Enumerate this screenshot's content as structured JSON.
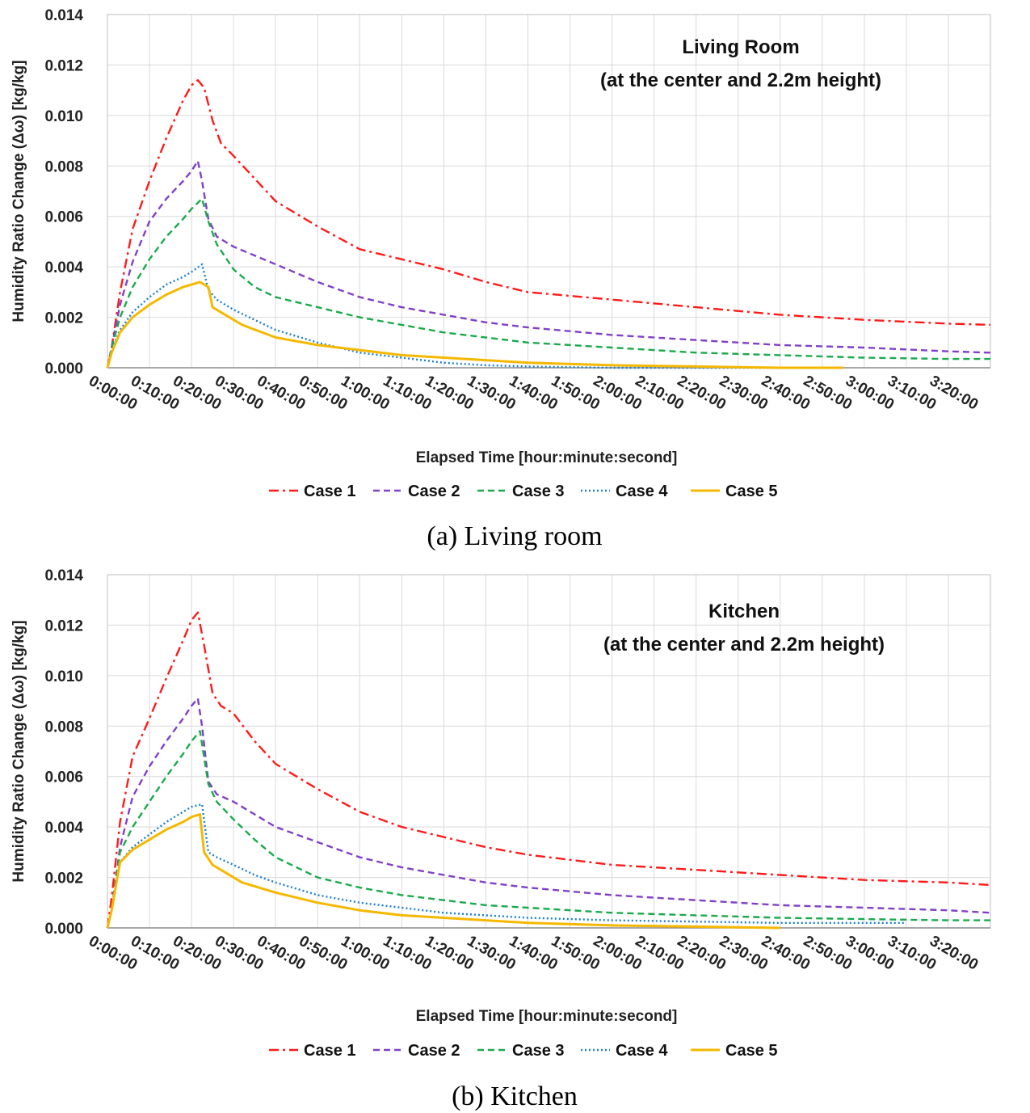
{
  "chart_data": [
    {
      "type": "line",
      "annotation": [
        "Living Room",
        "(at the center and 2.2m height)"
      ],
      "caption": "(a) Living room",
      "xlabel": "Elapsed Time [hour:minute:second]",
      "ylabel": "Humidity Ratio Change (Δω) [kg/kg]",
      "ylim": [
        0,
        0.014
      ],
      "xlim_minutes": [
        0,
        210
      ],
      "yticks": [
        "0.000",
        "0.002",
        "0.004",
        "0.006",
        "0.008",
        "0.010",
        "0.012",
        "0.014"
      ],
      "xticks": [
        "0:00:00",
        "0:10:00",
        "0:20:00",
        "0:30:00",
        "0:40:00",
        "0:50:00",
        "1:00:00",
        "1:10:00",
        "1:20:00",
        "1:30:00",
        "1:40:00",
        "1:50:00",
        "2:00:00",
        "2:10:00",
        "2:20:00",
        "2:30:00",
        "2:40:00",
        "2:50:00",
        "3:00:00",
        "3:10:00",
        "3:20:00"
      ],
      "grid": true,
      "legend_position": "bottom",
      "series": [
        {
          "name": "Case 1",
          "color": "#ff1a1a",
          "dash": "dashdot",
          "x": [
            0,
            1,
            3,
            6,
            10,
            14,
            18,
            20,
            21.5,
            23,
            25,
            27,
            30,
            35,
            40,
            50,
            60,
            70,
            80,
            90,
            100,
            120,
            140,
            160,
            180,
            200,
            210
          ],
          "y": [
            0,
            0.0008,
            0.003,
            0.0055,
            0.0074,
            0.0091,
            0.0106,
            0.0112,
            0.0114,
            0.0111,
            0.0098,
            0.0089,
            0.0084,
            0.0075,
            0.0066,
            0.0056,
            0.0047,
            0.0043,
            0.0039,
            0.0034,
            0.003,
            0.0027,
            0.0024,
            0.0021,
            0.0019,
            0.00175,
            0.0017
          ]
        },
        {
          "name": "Case 2",
          "color": "#8040c8",
          "dash": "dash",
          "x": [
            0,
            1,
            3,
            6,
            10,
            14,
            18,
            20,
            21.5,
            22.5,
            24,
            26,
            30,
            40,
            50,
            60,
            70,
            80,
            90,
            100,
            120,
            140,
            160,
            180,
            200,
            210
          ],
          "y": [
            0,
            0.0008,
            0.0025,
            0.0042,
            0.0058,
            0.0067,
            0.0074,
            0.0078,
            0.0082,
            0.0074,
            0.0059,
            0.0052,
            0.0048,
            0.0041,
            0.0034,
            0.0028,
            0.0024,
            0.0021,
            0.0018,
            0.0016,
            0.0013,
            0.0011,
            0.0009,
            0.0008,
            0.00065,
            0.0006
          ]
        },
        {
          "name": "Case 3",
          "color": "#1aaa4c",
          "dash": "dash",
          "x": [
            0,
            1,
            3,
            6,
            10,
            14,
            18,
            20,
            22.5,
            24,
            26,
            30,
            35,
            40,
            50,
            60,
            70,
            80,
            90,
            100,
            120,
            140,
            160,
            180,
            200,
            210
          ],
          "y": [
            0,
            0.0008,
            0.002,
            0.0032,
            0.0043,
            0.0052,
            0.0059,
            0.0063,
            0.0067,
            0.0058,
            0.0049,
            0.0039,
            0.0032,
            0.0028,
            0.0024,
            0.002,
            0.0017,
            0.0014,
            0.0012,
            0.001,
            0.0008,
            0.0006,
            0.0005,
            0.0004,
            0.00035,
            0.00035
          ]
        },
        {
          "name": "Case 4",
          "color": "#1a7fd4",
          "dash": "dot",
          "x": [
            0,
            1,
            3,
            6,
            10,
            14,
            18,
            20,
            22.5,
            24,
            26,
            30,
            35,
            40,
            50,
            60,
            70,
            80,
            90,
            100,
            120,
            140,
            160
          ],
          "y": [
            0,
            0.0007,
            0.0015,
            0.0022,
            0.0028,
            0.0033,
            0.0036,
            0.0038,
            0.0041,
            0.0031,
            0.0027,
            0.0023,
            0.0019,
            0.0015,
            0.001,
            0.0006,
            0.0004,
            0.0002,
            0.0001,
            5e-05,
            0.0,
            0.0,
            0.0
          ]
        },
        {
          "name": "Case 5",
          "color": "#f5b800",
          "dash": "solid",
          "x": [
            0,
            1,
            3,
            6,
            10,
            14,
            18,
            20,
            22,
            24,
            25,
            28,
            32,
            40,
            50,
            60,
            70,
            80,
            90,
            100,
            120,
            140,
            160,
            175
          ],
          "y": [
            0,
            0.0006,
            0.0014,
            0.002,
            0.0025,
            0.0029,
            0.0032,
            0.0033,
            0.0034,
            0.0032,
            0.0024,
            0.0021,
            0.0017,
            0.0012,
            0.0009,
            0.0007,
            0.0005,
            0.0004,
            0.0003,
            0.0002,
            0.0001,
            5e-05,
            0.0,
            0.0
          ]
        }
      ]
    },
    {
      "type": "line",
      "annotation": [
        "Kitchen",
        "(at the center and 2.2m height)"
      ],
      "caption": "(b) Kitchen",
      "xlabel": "Elapsed Time [hour:minute:second]",
      "ylabel": "Humidity Ratio Change (Δω) [kg/kg]",
      "ylim": [
        0,
        0.014
      ],
      "xlim_minutes": [
        0,
        210
      ],
      "yticks": [
        "0.000",
        "0.002",
        "0.004",
        "0.006",
        "0.008",
        "0.010",
        "0.012",
        "0.014"
      ],
      "xticks": [
        "0:00:00",
        "0:10:00",
        "0:20:00",
        "0:30:00",
        "0:40:00",
        "0:50:00",
        "1:00:00",
        "1:10:00",
        "1:20:00",
        "1:30:00",
        "1:40:00",
        "1:50:00",
        "2:00:00",
        "2:10:00",
        "2:20:00",
        "2:30:00",
        "2:40:00",
        "2:50:00",
        "3:00:00",
        "3:10:00",
        "3:20:00"
      ],
      "grid": true,
      "legend_position": "bottom",
      "series": [
        {
          "name": "Case 1",
          "color": "#ff1a1a",
          "dash": "dashdot",
          "x": [
            0,
            1,
            3,
            6,
            10,
            14,
            18,
            20,
            21.5,
            23,
            25,
            27,
            30,
            35,
            40,
            50,
            60,
            70,
            80,
            90,
            100,
            120,
            140,
            160,
            180,
            200,
            210
          ],
          "y": [
            0,
            0.0012,
            0.0042,
            0.0068,
            0.0083,
            0.0099,
            0.0114,
            0.0122,
            0.0125,
            0.0112,
            0.0093,
            0.0088,
            0.0085,
            0.0074,
            0.0065,
            0.0055,
            0.0046,
            0.004,
            0.0036,
            0.0032,
            0.0029,
            0.0025,
            0.0023,
            0.0021,
            0.0019,
            0.0018,
            0.0017
          ]
        },
        {
          "name": "Case 2",
          "color": "#8040c8",
          "dash": "dash",
          "x": [
            0,
            1,
            3,
            6,
            10,
            14,
            18,
            20,
            21.5,
            22.5,
            24,
            26,
            30,
            40,
            50,
            60,
            70,
            80,
            90,
            100,
            120,
            140,
            160,
            180,
            200,
            210
          ],
          "y": [
            0,
            0.0007,
            0.0032,
            0.0052,
            0.0064,
            0.0074,
            0.0083,
            0.0088,
            0.0091,
            0.008,
            0.0058,
            0.0053,
            0.005,
            0.004,
            0.0034,
            0.0028,
            0.0024,
            0.0021,
            0.0018,
            0.0016,
            0.0013,
            0.0011,
            0.0009,
            0.0008,
            0.0007,
            0.0006
          ]
        },
        {
          "name": "Case 3",
          "color": "#1aaa4c",
          "dash": "dash",
          "x": [
            0,
            1,
            3,
            6,
            10,
            14,
            18,
            20,
            22,
            24,
            26,
            30,
            35,
            40,
            50,
            60,
            70,
            80,
            90,
            100,
            120,
            140,
            160,
            180,
            200,
            210
          ],
          "y": [
            0,
            0.0007,
            0.003,
            0.004,
            0.005,
            0.006,
            0.0069,
            0.0074,
            0.0078,
            0.0057,
            0.005,
            0.0043,
            0.0035,
            0.0028,
            0.002,
            0.0016,
            0.0013,
            0.0011,
            0.0009,
            0.0008,
            0.0006,
            0.0005,
            0.0004,
            0.00035,
            0.0003,
            0.0003
          ]
        },
        {
          "name": "Case 4",
          "color": "#1a7fd4",
          "dash": "dot",
          "x": [
            0,
            1,
            3,
            6,
            10,
            14,
            18,
            20,
            22.5,
            24,
            26,
            30,
            35,
            40,
            50,
            60,
            70,
            80,
            90,
            100,
            120,
            140,
            160,
            180,
            190
          ],
          "y": [
            0,
            0.0007,
            0.0026,
            0.0032,
            0.0037,
            0.0042,
            0.0046,
            0.0048,
            0.0049,
            0.003,
            0.0028,
            0.0025,
            0.0021,
            0.0018,
            0.0013,
            0.001,
            0.0008,
            0.0006,
            0.0005,
            0.0004,
            0.0003,
            0.00025,
            0.0002,
            0.0002,
            0.0002
          ]
        },
        {
          "name": "Case 5",
          "color": "#f5b800",
          "dash": "solid",
          "x": [
            0,
            1,
            3,
            6,
            10,
            14,
            18,
            20,
            22,
            23,
            25,
            28,
            32,
            40,
            50,
            60,
            70,
            80,
            90,
            100,
            120,
            140,
            160
          ],
          "y": [
            0,
            0.0007,
            0.0026,
            0.0031,
            0.0035,
            0.0039,
            0.0042,
            0.0044,
            0.0045,
            0.003,
            0.0025,
            0.0022,
            0.0018,
            0.0014,
            0.001,
            0.0007,
            0.0005,
            0.0004,
            0.0003,
            0.0002,
            0.0001,
            5e-05,
            0.0
          ]
        }
      ]
    }
  ]
}
